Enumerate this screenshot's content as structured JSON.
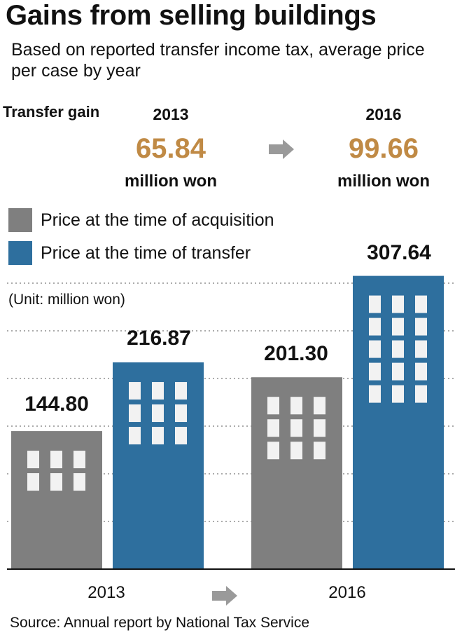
{
  "title": "Gains from selling buildings",
  "subtitle": "Based on reported transfer income tax, average price per case by year",
  "transfer_gain": {
    "label": "Transfer gain",
    "from": {
      "year": "2013",
      "value": "65.84",
      "unit": "million won"
    },
    "to": {
      "year": "2016",
      "value": "99.66",
      "unit": "million won"
    }
  },
  "unit_note": "(Unit: million won)",
  "source": "Source: Annual report by National Tax Service",
  "colors": {
    "acquisition": "#7f7f7f",
    "transfer": "#2e6f9e",
    "gain_value": "#c08a45",
    "arrow": "#9a9a9a",
    "window": "#f2f2f2",
    "grid": "#8f8f8f"
  },
  "chart_data": {
    "type": "bar",
    "categories": [
      "2013",
      "2016"
    ],
    "series": [
      {
        "name": "Price at the time of acquisition",
        "values": [
          144.8,
          201.3
        ],
        "labels": [
          "144.80",
          "201.30"
        ]
      },
      {
        "name": "Price at the time of transfer",
        "values": [
          216.87,
          307.64
        ],
        "labels": [
          "216.87",
          "307.64"
        ]
      }
    ],
    "ylim": [
      0,
      320
    ],
    "grid": true,
    "legend": "top-left"
  }
}
